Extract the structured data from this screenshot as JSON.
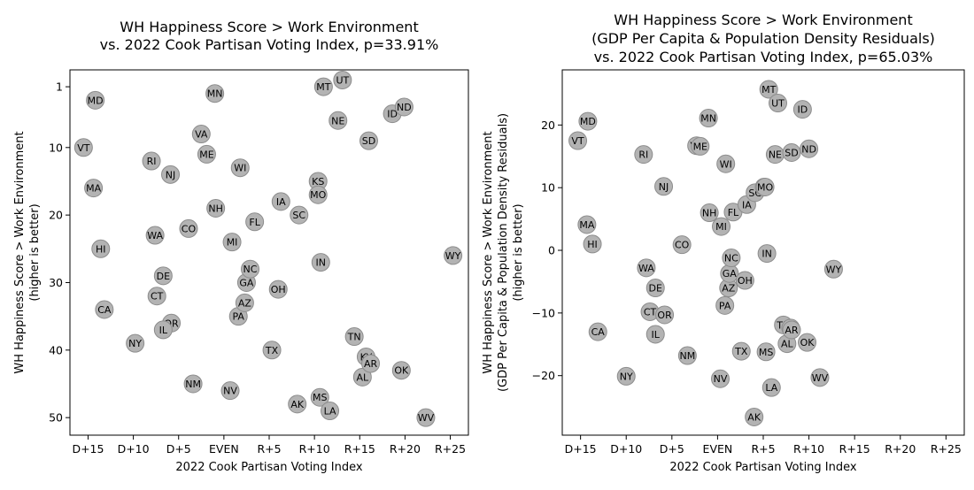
{
  "colors": {
    "marker_fill": "#b3b3b3",
    "marker_edge": "#8c8c8c",
    "axes": "#000000",
    "background": "#ffffff"
  },
  "chart_data": [
    {
      "type": "scatter",
      "title": [
        "WH Happiness Score > Work Environment",
        "vs. 2022 Cook Partisan Voting Index, p=33.91%"
      ],
      "xlabel": "2022 Cook Partisan Voting Index",
      "ylabel": [
        "WH Happiness Score > Work Environment",
        "(higher is better)"
      ],
      "xlim": [
        -17,
        27
      ],
      "ylim": [
        52.6,
        -1.5
      ],
      "y_inverted": true,
      "xticks": [
        {
          "v": -15,
          "label": "D+15"
        },
        {
          "v": -10,
          "label": "D+10"
        },
        {
          "v": -5,
          "label": "D+5"
        },
        {
          "v": 0,
          "label": "EVEN"
        },
        {
          "v": 5,
          "label": "R+5"
        },
        {
          "v": 10,
          "label": "R+10"
        },
        {
          "v": 15,
          "label": "R+15"
        },
        {
          "v": 20,
          "label": "R+20"
        },
        {
          "v": 25,
          "label": "R+25"
        }
      ],
      "yticks": [
        {
          "v": 1,
          "label": "1"
        },
        {
          "v": 10,
          "label": "10"
        },
        {
          "v": 20,
          "label": "20"
        },
        {
          "v": 30,
          "label": "30"
        },
        {
          "v": 40,
          "label": "40"
        },
        {
          "v": 50,
          "label": "50"
        }
      ],
      "grid": false,
      "points": [
        {
          "label": "MD",
          "x": -14.2,
          "y": 3
        },
        {
          "label": "VT",
          "x": -15.5,
          "y": 10
        },
        {
          "label": "MA",
          "x": -14.4,
          "y": 16
        },
        {
          "label": "HI",
          "x": -13.6,
          "y": 25
        },
        {
          "label": "CA",
          "x": -13.2,
          "y": 34
        },
        {
          "label": "NY",
          "x": -9.8,
          "y": 39
        },
        {
          "label": "RI",
          "x": -8,
          "y": 12
        },
        {
          "label": "NJ",
          "x": -5.9,
          "y": 14
        },
        {
          "label": "WA",
          "x": -7.6,
          "y": 23
        },
        {
          "label": "DE",
          "x": -6.7,
          "y": 29
        },
        {
          "label": "CT",
          "x": -7.4,
          "y": 32
        },
        {
          "label": "OR",
          "x": -5.8,
          "y": 36
        },
        {
          "label": "IL",
          "x": -6.7,
          "y": 37
        },
        {
          "label": "NM",
          "x": -3.4,
          "y": 45
        },
        {
          "label": "CO",
          "x": -3.9,
          "y": 22
        },
        {
          "label": "VA",
          "x": -2.5,
          "y": 8
        },
        {
          "label": "ME",
          "x": -1.9,
          "y": 11
        },
        {
          "label": "MN",
          "x": -1,
          "y": 2
        },
        {
          "label": "NH",
          "x": -0.9,
          "y": 19
        },
        {
          "label": "MI",
          "x": 0.9,
          "y": 24
        },
        {
          "label": "NV",
          "x": 0.7,
          "y": 46
        },
        {
          "label": "WI",
          "x": 1.8,
          "y": 13
        },
        {
          "label": "PA",
          "x": 1.6,
          "y": 35
        },
        {
          "label": "AZ",
          "x": 2.3,
          "y": 33
        },
        {
          "label": "GA",
          "x": 2.5,
          "y": 30
        },
        {
          "label": "NC",
          "x": 2.9,
          "y": 28
        },
        {
          "label": "FL",
          "x": 3.4,
          "y": 21
        },
        {
          "label": "OH",
          "x": 6,
          "y": 31
        },
        {
          "label": "TX",
          "x": 5.3,
          "y": 40
        },
        {
          "label": "IA",
          "x": 6.3,
          "y": 18
        },
        {
          "label": "SC",
          "x": 8.3,
          "y": 20
        },
        {
          "label": "AK",
          "x": 8.1,
          "y": 48
        },
        {
          "label": "KS",
          "x": 10.4,
          "y": 15
        },
        {
          "label": "MO",
          "x": 10.4,
          "y": 17
        },
        {
          "label": "MT",
          "x": 11,
          "y": 1
        },
        {
          "label": "IN",
          "x": 10.7,
          "y": 27
        },
        {
          "label": "MS",
          "x": 10.6,
          "y": 47
        },
        {
          "label": "LA",
          "x": 11.7,
          "y": 49
        },
        {
          "label": "UT",
          "x": 13.1,
          "y": 0
        },
        {
          "label": "NE",
          "x": 12.6,
          "y": 6
        },
        {
          "label": "TN",
          "x": 14.4,
          "y": 38
        },
        {
          "label": "KY",
          "x": 15.7,
          "y": 41
        },
        {
          "label": "AL",
          "x": 15.3,
          "y": 44
        },
        {
          "label": "AR",
          "x": 16.2,
          "y": 42
        },
        {
          "label": "SD",
          "x": 16,
          "y": 9
        },
        {
          "label": "ID",
          "x": 18.6,
          "y": 5
        },
        {
          "label": "ND",
          "x": 19.9,
          "y": 4
        },
        {
          "label": "OK",
          "x": 19.6,
          "y": 43
        },
        {
          "label": "WV",
          "x": 22.3,
          "y": 50
        },
        {
          "label": "WY",
          "x": 25.3,
          "y": 26
        }
      ]
    },
    {
      "type": "scatter",
      "title": [
        "WH Happiness Score > Work Environment",
        "(GDP Per Capita & Population Density Residuals)",
        "vs. 2022 Cook Partisan Voting Index, p=65.03%"
      ],
      "xlabel": "2022 Cook Partisan Voting Index",
      "ylabel": [
        "WH Happiness Score > Work Environment",
        "(GDP Per Capita & Population Density Residuals)",
        "(higher is better)"
      ],
      "xlim": [
        -17,
        27
      ],
      "ylim": [
        -29.5,
        28.8
      ],
      "y_inverted": false,
      "xticks": [
        {
          "v": -15,
          "label": "D+15"
        },
        {
          "v": -10,
          "label": "D+10"
        },
        {
          "v": -5,
          "label": "D+5"
        },
        {
          "v": 0,
          "label": "EVEN"
        },
        {
          "v": 5,
          "label": "R+5"
        },
        {
          "v": 10,
          "label": "R+10"
        },
        {
          "v": 15,
          "label": "R+15"
        },
        {
          "v": 20,
          "label": "R+20"
        },
        {
          "v": 25,
          "label": "R+25"
        }
      ],
      "yticks": [
        {
          "v": -20,
          "label": "−20"
        },
        {
          "v": -10,
          "label": "−10"
        },
        {
          "v": 0,
          "label": "0"
        },
        {
          "v": 10,
          "label": "10"
        },
        {
          "v": 20,
          "label": "20"
        }
      ],
      "grid": false,
      "points": [
        {
          "label": "MD",
          "x": -14.2,
          "y": 20.6
        },
        {
          "label": "VT",
          "x": -15.3,
          "y": 17.5
        },
        {
          "label": "MA",
          "x": -14.3,
          "y": 4.1
        },
        {
          "label": "HI",
          "x": -13.7,
          "y": 1
        },
        {
          "label": "CA",
          "x": -13.1,
          "y": -13
        },
        {
          "label": "NY",
          "x": -10,
          "y": -20.1
        },
        {
          "label": "RI",
          "x": -8.1,
          "y": 15.3
        },
        {
          "label": "NJ",
          "x": -5.9,
          "y": 10.2
        },
        {
          "label": "WA",
          "x": -7.8,
          "y": -2.8
        },
        {
          "label": "DE",
          "x": -6.8,
          "y": -6
        },
        {
          "label": "CT",
          "x": -7.4,
          "y": -9.8
        },
        {
          "label": "OR",
          "x": -5.8,
          "y": -10.3
        },
        {
          "label": "IL",
          "x": -6.8,
          "y": -13.4
        },
        {
          "label": "CO",
          "x": -3.9,
          "y": 0.9
        },
        {
          "label": "NM",
          "x": -3.3,
          "y": -16.8
        },
        {
          "label": "VA",
          "x": -2.3,
          "y": 16.7
        },
        {
          "label": "ME",
          "x": -1.9,
          "y": 16.6
        },
        {
          "label": "MN",
          "x": -1,
          "y": 21.1
        },
        {
          "label": "NH",
          "x": -0.9,
          "y": 6
        },
        {
          "label": "MI",
          "x": 0.4,
          "y": 3.8
        },
        {
          "label": "NV",
          "x": 0.3,
          "y": -20.5
        },
        {
          "label": "WI",
          "x": 0.9,
          "y": 13.8
        },
        {
          "label": "PA",
          "x": 0.8,
          "y": -8.8
        },
        {
          "label": "AZ",
          "x": 1.2,
          "y": -6
        },
        {
          "label": "GA",
          "x": 1.3,
          "y": -3.7
        },
        {
          "label": "NC",
          "x": 1.5,
          "y": -1.2
        },
        {
          "label": "FL",
          "x": 1.7,
          "y": 6.1
        },
        {
          "label": "OH",
          "x": 3,
          "y": -4.8
        },
        {
          "label": "TX",
          "x": 2.6,
          "y": -16.1
        },
        {
          "label": "IA",
          "x": 3.2,
          "y": 7.3
        },
        {
          "label": "SC",
          "x": 4.1,
          "y": 9.2
        },
        {
          "label": "AK",
          "x": 4,
          "y": -26.6
        },
        {
          "label": "KS",
          "x": 5.1,
          "y": 10.1
        },
        {
          "label": "MO",
          "x": 5.2,
          "y": 10.1
        },
        {
          "label": "MT",
          "x": 5.6,
          "y": 25.7
        },
        {
          "label": "IN",
          "x": 5.4,
          "y": -0.5
        },
        {
          "label": "MS",
          "x": 5.3,
          "y": -16.2
        },
        {
          "label": "LA",
          "x": 5.9,
          "y": -21.9
        },
        {
          "label": "UT",
          "x": 6.6,
          "y": 23.5
        },
        {
          "label": "NE",
          "x": 6.3,
          "y": 15.3
        },
        {
          "label": "TN",
          "x": 7.2,
          "y": -11.9
        },
        {
          "label": "KY",
          "x": 8,
          "y": -12.4
        },
        {
          "label": "AL",
          "x": 7.6,
          "y": -14.9
        },
        {
          "label": "AR",
          "x": 8.1,
          "y": -12.7
        },
        {
          "label": "SD",
          "x": 8.1,
          "y": 15.6
        },
        {
          "label": "ID",
          "x": 9.3,
          "y": 22.5
        },
        {
          "label": "ND",
          "x": 10,
          "y": 16.2
        },
        {
          "label": "OK",
          "x": 9.8,
          "y": -14.7
        },
        {
          "label": "WV",
          "x": 11.2,
          "y": -20.3
        },
        {
          "label": "WY",
          "x": 12.7,
          "y": -3
        }
      ]
    }
  ]
}
